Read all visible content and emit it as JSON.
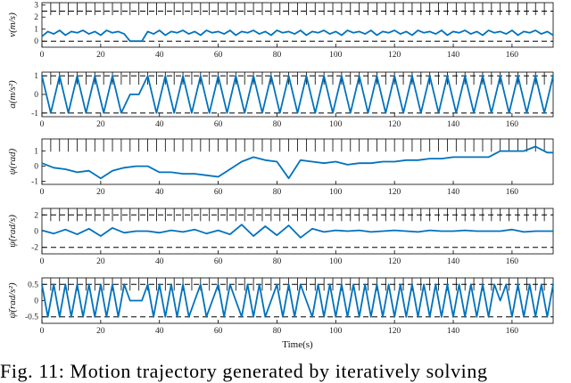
{
  "caption": "Fig. 11: Motion trajectory generated by iteratively solving",
  "colors": {
    "series": "#0072BD",
    "bound": "#000000",
    "axes": "#000000"
  },
  "chart_data": [
    {
      "type": "line",
      "ylabel": "v(m/s)",
      "xlim": [
        0,
        174
      ],
      "ylim": [
        -0.5,
        3.2
      ],
      "yticks": [
        0,
        1,
        2,
        3
      ],
      "bounds": [
        0,
        2.5
      ],
      "xticks": [
        0,
        20,
        40,
        60,
        80,
        100,
        120,
        140,
        160
      ],
      "series": [
        {
          "x": [
            0,
            2,
            4,
            6,
            8,
            10,
            12,
            14,
            16,
            18,
            20,
            22,
            24,
            26,
            28,
            30,
            32,
            34,
            36,
            38,
            40,
            42,
            44,
            46,
            48,
            50,
            52,
            54,
            56,
            58,
            60,
            62,
            64,
            66,
            68,
            70,
            72,
            74,
            76,
            78,
            80,
            82,
            84,
            86,
            88,
            90,
            92,
            94,
            96,
            98,
            100,
            102,
            104,
            106,
            108,
            110,
            112,
            114,
            116,
            118,
            120,
            122,
            124,
            126,
            128,
            130,
            132,
            134,
            136,
            138,
            140,
            142,
            144,
            146,
            148,
            150,
            152,
            154,
            156,
            158,
            160,
            162,
            164,
            166,
            168,
            170,
            172,
            174
          ],
          "y": [
            0.4,
            0.8,
            0.6,
            0.9,
            0.5,
            0.8,
            0.7,
            0.9,
            0.6,
            0.8,
            0.5,
            0.9,
            0.7,
            0.8,
            0.6,
            0.0,
            0.0,
            0.0,
            0.8,
            0.6,
            0.9,
            0.5,
            0.8,
            0.7,
            0.9,
            0.6,
            0.8,
            0.5,
            0.9,
            0.7,
            0.8,
            0.6,
            0.9,
            0.5,
            0.8,
            0.7,
            0.9,
            0.6,
            0.8,
            0.5,
            0.9,
            0.7,
            0.8,
            0.6,
            0.9,
            0.5,
            0.8,
            0.7,
            0.9,
            0.6,
            0.8,
            0.5,
            0.9,
            0.7,
            0.8,
            0.6,
            0.9,
            0.5,
            0.8,
            0.7,
            0.9,
            0.6,
            0.8,
            0.5,
            0.9,
            0.7,
            0.8,
            0.6,
            0.9,
            0.5,
            0.8,
            0.7,
            0.9,
            0.6,
            0.8,
            0.5,
            0.9,
            0.7,
            0.8,
            0.6,
            0.9,
            0.5,
            0.8,
            0.7,
            0.9,
            0.6,
            0.8,
            0.5
          ]
        }
      ]
    },
    {
      "type": "line",
      "ylabel": "a(m/s²)",
      "xlim": [
        0,
        174
      ],
      "ylim": [
        -1.2,
        1.2
      ],
      "yticks": [
        -1,
        0,
        1
      ],
      "bounds": [
        -1,
        1
      ],
      "xticks": [
        0,
        20,
        40,
        60,
        80,
        100,
        120,
        140,
        160
      ],
      "series": [
        {
          "x": [
            0,
            3,
            6,
            9,
            12,
            15,
            18,
            21,
            24,
            27,
            30,
            33,
            36,
            39,
            42,
            45,
            48,
            51,
            54,
            57,
            60,
            63,
            66,
            69,
            72,
            75,
            78,
            81,
            84,
            87,
            90,
            93,
            96,
            99,
            102,
            105,
            108,
            111,
            114,
            117,
            120,
            123,
            126,
            129,
            132,
            135,
            138,
            141,
            144,
            147,
            150,
            153,
            156,
            159,
            162,
            165,
            168,
            171,
            174
          ],
          "y": [
            1,
            -1,
            1,
            -1,
            1,
            -1,
            1,
            -1,
            1,
            -1,
            0,
            0,
            1,
            -1,
            1,
            -1,
            1,
            -1,
            1,
            -1,
            1,
            -1,
            1,
            -1,
            1,
            -1,
            1,
            -1,
            1,
            -1,
            1,
            -1,
            1,
            -1,
            1,
            -1,
            1,
            -1,
            1,
            -1,
            1,
            -1,
            1,
            -1,
            1,
            -1,
            1,
            -1,
            1,
            -1,
            1,
            -1,
            1,
            -1,
            1,
            -1,
            1,
            -1,
            1
          ]
        }
      ]
    },
    {
      "type": "line",
      "ylabel": "ψ(rad)",
      "xlim": [
        0,
        174
      ],
      "ylim": [
        -1.2,
        1.8
      ],
      "yticks": [
        -1,
        0,
        1
      ],
      "bounds": [],
      "xticks": [
        0,
        20,
        40,
        60,
        80,
        100,
        120,
        140,
        160
      ],
      "series": [
        {
          "x": [
            0,
            4,
            8,
            12,
            16,
            20,
            24,
            28,
            32,
            36,
            40,
            44,
            48,
            52,
            56,
            60,
            64,
            68,
            72,
            76,
            80,
            84,
            88,
            92,
            96,
            100,
            104,
            108,
            112,
            116,
            120,
            124,
            128,
            132,
            136,
            140,
            144,
            148,
            152,
            156,
            160,
            164,
            168,
            172,
            174
          ],
          "y": [
            0.2,
            -0.1,
            -0.2,
            -0.4,
            -0.3,
            -0.8,
            -0.3,
            -0.1,
            0.0,
            0.0,
            -0.4,
            -0.4,
            -0.5,
            -0.5,
            -0.6,
            -0.7,
            -0.2,
            0.3,
            0.6,
            0.4,
            0.3,
            -0.8,
            0.4,
            0.3,
            0.2,
            0.3,
            0.1,
            0.2,
            0.2,
            0.3,
            0.3,
            0.4,
            0.4,
            0.5,
            0.5,
            0.6,
            0.6,
            0.6,
            0.6,
            1.0,
            1.0,
            1.0,
            1.3,
            0.9,
            0.9
          ]
        }
      ]
    },
    {
      "type": "line",
      "ylabel": "ψ̇(rad/s)",
      "xlim": [
        0,
        174
      ],
      "ylim": [
        -2.8,
        2.8
      ],
      "yticks": [
        -2,
        0,
        2
      ],
      "bounds": [
        -2,
        2
      ],
      "xticks": [
        0,
        20,
        40,
        60,
        80,
        100,
        120,
        140,
        160
      ],
      "series": [
        {
          "x": [
            0,
            4,
            8,
            12,
            16,
            20,
            24,
            28,
            32,
            36,
            40,
            44,
            48,
            52,
            56,
            60,
            64,
            68,
            72,
            76,
            80,
            84,
            88,
            92,
            96,
            100,
            104,
            108,
            112,
            116,
            120,
            124,
            128,
            132,
            136,
            140,
            144,
            148,
            152,
            156,
            160,
            164,
            168,
            172,
            174
          ],
          "y": [
            0.1,
            -0.3,
            0.2,
            -0.4,
            0.3,
            -0.6,
            0.4,
            -0.2,
            0.0,
            0.0,
            -0.2,
            0.1,
            -0.1,
            0.2,
            -0.3,
            0.1,
            -0.4,
            0.8,
            -0.6,
            0.6,
            -0.5,
            0.7,
            -0.8,
            0.3,
            -0.1,
            0.1,
            0.0,
            0.1,
            -0.1,
            0.0,
            0.1,
            0.0,
            -0.1,
            0.1,
            0.0,
            0.0,
            0.1,
            0.0,
            0.0,
            0.0,
            0.2,
            -0.1,
            0.0,
            0.0,
            0.0
          ]
        }
      ]
    },
    {
      "type": "line",
      "ylabel": "ψ̈(rad/s²)",
      "xlabel": "Time(s)",
      "xlim": [
        0,
        174
      ],
      "ylim": [
        -0.7,
        0.7
      ],
      "yticks": [
        -0.5,
        0,
        0.5
      ],
      "bounds": [
        -0.5,
        0.5
      ],
      "xticks": [
        0,
        20,
        40,
        60,
        80,
        100,
        120,
        140,
        160
      ],
      "series": [
        {
          "x": [
            0,
            2,
            4,
            6,
            8,
            10,
            12,
            14,
            16,
            18,
            20,
            22,
            24,
            26,
            28,
            30,
            32,
            34,
            36,
            38,
            40,
            42,
            44,
            46,
            48,
            50,
            52,
            54,
            56,
            58,
            60,
            62,
            64,
            66,
            68,
            70,
            72,
            74,
            76,
            78,
            80,
            82,
            84,
            86,
            88,
            90,
            92,
            94,
            96,
            98,
            100,
            102,
            104,
            106,
            108,
            110,
            112,
            114,
            116,
            118,
            120,
            122,
            124,
            126,
            128,
            130,
            132,
            134,
            136,
            138,
            140,
            142,
            144,
            146,
            148,
            150,
            152,
            154,
            156,
            158,
            160,
            162,
            164,
            166,
            168,
            170,
            172,
            174
          ],
          "y": [
            0.5,
            -0.5,
            0.5,
            -0.5,
            0.5,
            -0.5,
            0.5,
            -0.5,
            0.5,
            -0.5,
            0.5,
            -0.5,
            0.5,
            -0.5,
            0.5,
            0.0,
            0.0,
            0.0,
            0.5,
            -0.5,
            0.5,
            -0.5,
            0.5,
            -0.5,
            0.5,
            -0.5,
            0.0,
            0.5,
            -0.5,
            0.0,
            0.5,
            -0.5,
            0.5,
            0.0,
            -0.5,
            0.5,
            -0.5,
            0.5,
            -0.5,
            0.0,
            0.5,
            -0.5,
            0.5,
            -0.5,
            0.5,
            0.0,
            -0.5,
            0.5,
            -0.5,
            0.5,
            -0.5,
            0.5,
            -0.5,
            0.5,
            -0.5,
            0.5,
            -0.5,
            0.5,
            -0.5,
            0.5,
            -0.5,
            0.5,
            -0.5,
            0.5,
            -0.5,
            0.5,
            -0.5,
            0.5,
            -0.5,
            0.5,
            -0.5,
            0.5,
            -0.5,
            0.5,
            -0.5,
            0.5,
            -0.5,
            0.5,
            0.0,
            0.5,
            -0.5,
            0.5,
            -0.5,
            0.5,
            -0.5,
            0.5,
            -0.5,
            0.5
          ]
        }
      ]
    }
  ]
}
